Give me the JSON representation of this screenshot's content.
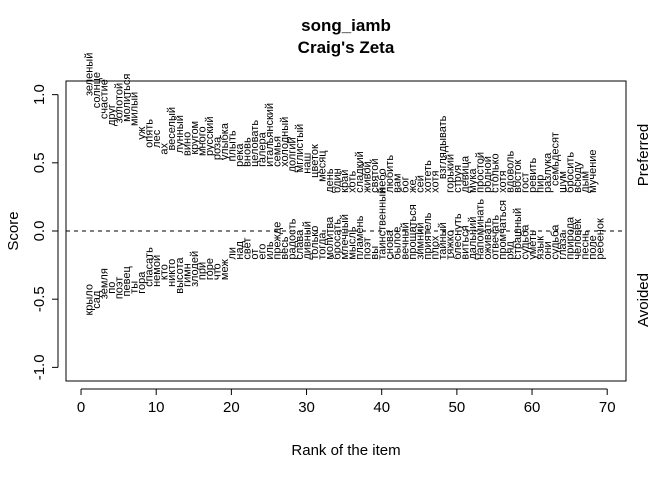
{
  "chart_data": {
    "type": "scatter",
    "title": "song_iamb",
    "subtitle": "Craig's Zeta",
    "xlabel": "Rank of the item",
    "ylabel": "Score",
    "xlim": [
      -2,
      72.5
    ],
    "ylim": [
      -1.1,
      1.1
    ],
    "x_ticks": [
      0,
      10,
      20,
      30,
      40,
      50,
      60,
      70
    ],
    "y_ticks": [
      -1.0,
      -0.5,
      0.0,
      0.5,
      1.0
    ],
    "x_tick_labels": [
      "0",
      "10",
      "20",
      "30",
      "40",
      "50",
      "60",
      "70"
    ],
    "y_tick_labels": [
      "-1.0",
      "-0.5",
      "0.0",
      "0.5",
      "1.0"
    ],
    "reference_line": 0,
    "right_labels": {
      "top": "Preferred",
      "bottom": "Avoided"
    },
    "series": [
      {
        "group": "Preferred",
        "points": [
          {
            "x": 1,
            "y": 0.99,
            "label": "зеленый"
          },
          {
            "x": 2,
            "y": 0.9,
            "label": "солнце"
          },
          {
            "x": 3,
            "y": 0.82,
            "label": "счастие"
          },
          {
            "x": 4,
            "y": 0.77,
            "label": "друг"
          },
          {
            "x": 5,
            "y": 0.79,
            "label": "золотой"
          },
          {
            "x": 6,
            "y": 0.8,
            "label": "молиться"
          },
          {
            "x": 7,
            "y": 0.77,
            "label": "милый"
          },
          {
            "x": 8,
            "y": 0.67,
            "label": "уж"
          },
          {
            "x": 9,
            "y": 0.61,
            "label": "опять"
          },
          {
            "x": 10,
            "y": 0.61,
            "label": "лес"
          },
          {
            "x": 11,
            "y": 0.56,
            "label": "ах"
          },
          {
            "x": 12,
            "y": 0.59,
            "label": "веселый"
          },
          {
            "x": 13,
            "y": 0.57,
            "label": "лунный"
          },
          {
            "x": 14,
            "y": 0.55,
            "label": "вино"
          },
          {
            "x": 15,
            "y": 0.56,
            "label": "кругом"
          },
          {
            "x": 16,
            "y": 0.55,
            "label": "много"
          },
          {
            "x": 17,
            "y": 0.55,
            "label": "русский"
          },
          {
            "x": 18,
            "y": 0.52,
            "label": "роза"
          },
          {
            "x": 19,
            "y": 0.52,
            "label": "улыбка"
          },
          {
            "x": 20,
            "y": 0.51,
            "label": "плыть"
          },
          {
            "x": 21,
            "y": 0.47,
            "label": "река"
          },
          {
            "x": 22,
            "y": 0.47,
            "label": "вновь"
          },
          {
            "x": 23,
            "y": 0.47,
            "label": "целовать"
          },
          {
            "x": 24,
            "y": 0.47,
            "label": "галера"
          },
          {
            "x": 25,
            "y": 0.47,
            "label": "итальянский"
          },
          {
            "x": 26,
            "y": 0.47,
            "label": "семья"
          },
          {
            "x": 27,
            "y": 0.47,
            "label": "холодный"
          },
          {
            "x": 28,
            "y": 0.43,
            "label": "долгий"
          },
          {
            "x": 29,
            "y": 0.43,
            "label": "мглистый"
          },
          {
            "x": 30,
            "y": 0.42,
            "label": "наш"
          },
          {
            "x": 31,
            "y": 0.39,
            "label": "цветок"
          },
          {
            "x": 32,
            "y": 0.36,
            "label": "месяц"
          },
          {
            "x": 33,
            "y": 0.28,
            "label": "день"
          },
          {
            "x": 34,
            "y": 0.28,
            "label": "один"
          },
          {
            "x": 35,
            "y": 0.28,
            "label": "край"
          },
          {
            "x": 36,
            "y": 0.28,
            "label": "хоть"
          },
          {
            "x": 37,
            "y": 0.28,
            "label": "сладкий"
          },
          {
            "x": 38,
            "y": 0.28,
            "label": "живой"
          },
          {
            "x": 39,
            "y": 0.28,
            "label": "святой"
          },
          {
            "x": 40,
            "y": 0.28,
            "label": "небо"
          },
          {
            "x": 41,
            "y": 0.28,
            "label": "любить"
          },
          {
            "x": 42,
            "y": 0.28,
            "label": "вам"
          },
          {
            "x": 43,
            "y": 0.28,
            "label": "бог"
          },
          {
            "x": 44,
            "y": 0.28,
            "label": "же"
          },
          {
            "x": 45,
            "y": 0.28,
            "label": "сей"
          },
          {
            "x": 46,
            "y": 0.28,
            "label": "хотеть"
          },
          {
            "x": 47,
            "y": 0.28,
            "label": "хотя"
          },
          {
            "x": 48,
            "y": 0.38,
            "label": "взглядывать"
          },
          {
            "x": 49,
            "y": 0.28,
            "label": "горький"
          },
          {
            "x": 50,
            "y": 0.28,
            "label": "струя"
          },
          {
            "x": 51,
            "y": 0.28,
            "label": "девица"
          },
          {
            "x": 52,
            "y": 0.28,
            "label": "мука"
          },
          {
            "x": 53,
            "y": 0.28,
            "label": "простой"
          },
          {
            "x": 54,
            "y": 0.28,
            "label": "родной"
          },
          {
            "x": 55,
            "y": 0.28,
            "label": "столько"
          },
          {
            "x": 56,
            "y": 0.28,
            "label": "хотя"
          },
          {
            "x": 57,
            "y": 0.28,
            "label": "вдоволь"
          },
          {
            "x": 58,
            "y": 0.28,
            "label": "восток"
          },
          {
            "x": 59,
            "y": 0.28,
            "label": "гост"
          },
          {
            "x": 60,
            "y": 0.28,
            "label": "ревить"
          },
          {
            "x": 61,
            "y": 0.28,
            "label": "пир"
          },
          {
            "x": 62,
            "y": 0.28,
            "label": "разлука"
          },
          {
            "x": 63,
            "y": 0.33,
            "label": "семьдесят"
          },
          {
            "x": 64,
            "y": 0.28,
            "label": "шум"
          },
          {
            "x": 65,
            "y": 0.28,
            "label": "бросить"
          },
          {
            "x": 66,
            "y": 0.28,
            "label": "всюду"
          },
          {
            "x": 67,
            "y": 0.28,
            "label": "дым"
          },
          {
            "x": 68,
            "y": 0.28,
            "label": "мучение"
          }
        ]
      },
      {
        "group": "Avoided",
        "points": [
          {
            "x": 1,
            "y": -0.62,
            "label": "крыло"
          },
          {
            "x": 2,
            "y": -0.57,
            "label": "сад"
          },
          {
            "x": 3,
            "y": -0.5,
            "label": "земля"
          },
          {
            "x": 4,
            "y": -0.46,
            "label": "по"
          },
          {
            "x": 5,
            "y": -0.5,
            "label": "поэт"
          },
          {
            "x": 6,
            "y": -0.48,
            "label": "певец"
          },
          {
            "x": 7,
            "y": -0.46,
            "label": "ты"
          },
          {
            "x": 8,
            "y": -0.46,
            "label": "гора"
          },
          {
            "x": 9,
            "y": -0.41,
            "label": "спасать"
          },
          {
            "x": 10,
            "y": -0.41,
            "label": "немой"
          },
          {
            "x": 11,
            "y": -0.36,
            "label": "кто"
          },
          {
            "x": 12,
            "y": -0.41,
            "label": "никто"
          },
          {
            "x": 13,
            "y": -0.46,
            "label": "высота"
          },
          {
            "x": 14,
            "y": -0.41,
            "label": "гимн"
          },
          {
            "x": 15,
            "y": -0.41,
            "label": "злодей"
          },
          {
            "x": 16,
            "y": -0.36,
            "label": "при"
          },
          {
            "x": 17,
            "y": -0.36,
            "label": "горе"
          },
          {
            "x": 18,
            "y": -0.36,
            "label": "что"
          },
          {
            "x": 19,
            "y": -0.36,
            "label": "меж"
          },
          {
            "x": 20,
            "y": -0.21,
            "label": "ли"
          },
          {
            "x": 21,
            "y": -0.21,
            "label": "над"
          },
          {
            "x": 22,
            "y": -0.21,
            "label": "свет"
          },
          {
            "x": 23,
            "y": -0.21,
            "label": "от"
          },
          {
            "x": 24,
            "y": -0.21,
            "label": "его"
          },
          {
            "x": 25,
            "y": -0.21,
            "label": "иль"
          },
          {
            "x": 26,
            "y": -0.21,
            "label": "прежде"
          },
          {
            "x": 27,
            "y": -0.21,
            "label": "весь"
          },
          {
            "x": 28,
            "y": -0.21,
            "label": "радость"
          },
          {
            "x": 29,
            "y": -0.21,
            "label": "слава"
          },
          {
            "x": 30,
            "y": -0.21,
            "label": "дивный"
          },
          {
            "x": 31,
            "y": -0.21,
            "label": "только"
          },
          {
            "x": 32,
            "y": -0.21,
            "label": "тогда"
          },
          {
            "x": 33,
            "y": -0.21,
            "label": "молитва"
          },
          {
            "x": 34,
            "y": -0.21,
            "label": "бросать"
          },
          {
            "x": 35,
            "y": -0.21,
            "label": "млечный"
          },
          {
            "x": 36,
            "y": -0.21,
            "label": "мысль"
          },
          {
            "x": 37,
            "y": -0.21,
            "label": "пламень"
          },
          {
            "x": 38,
            "y": -0.21,
            "label": "поэт"
          },
          {
            "x": 39,
            "y": -0.21,
            "label": "вы"
          },
          {
            "x": 40,
            "y": -0.21,
            "label": "таинственный"
          },
          {
            "x": 41,
            "y": -0.21,
            "label": "снова"
          },
          {
            "x": 42,
            "y": -0.21,
            "label": "былое"
          },
          {
            "x": 43,
            "y": -0.21,
            "label": "вечный"
          },
          {
            "x": 44,
            "y": -0.21,
            "label": "прощаться"
          },
          {
            "x": 45,
            "y": -0.21,
            "label": "зимний"
          },
          {
            "x": 46,
            "y": -0.21,
            "label": "приятель"
          },
          {
            "x": 47,
            "y": -0.21,
            "label": "плох"
          },
          {
            "x": 48,
            "y": -0.21,
            "label": "тайный"
          },
          {
            "x": 49,
            "y": -0.21,
            "label": "тяжко"
          },
          {
            "x": 50,
            "y": -0.21,
            "label": "блеснуть"
          },
          {
            "x": 51,
            "y": -0.21,
            "label": "виться"
          },
          {
            "x": 52,
            "y": -0.21,
            "label": "дальний"
          },
          {
            "x": 53,
            "y": -0.21,
            "label": "напоминать"
          },
          {
            "x": 54,
            "y": -0.21,
            "label": "оживать"
          },
          {
            "x": 55,
            "y": -0.21,
            "label": "отвечать"
          },
          {
            "x": 56,
            "y": -0.21,
            "label": "промчаться"
          },
          {
            "x": 57,
            "y": -0.21,
            "label": "ряд"
          },
          {
            "x": 58,
            "y": -0.21,
            "label": "страшный"
          },
          {
            "x": 59,
            "y": -0.21,
            "label": "судьба"
          },
          {
            "x": 60,
            "y": -0.21,
            "label": "уметь"
          },
          {
            "x": 61,
            "y": -0.21,
            "label": "язык"
          },
          {
            "x": 62,
            "y": -0.21,
            "label": "они"
          },
          {
            "x": 63,
            "y": -0.21,
            "label": "судьба"
          },
          {
            "x": 64,
            "y": -0.21,
            "label": "глаза"
          },
          {
            "x": 65,
            "y": -0.21,
            "label": "природа"
          },
          {
            "x": 66,
            "y": -0.21,
            "label": "человек"
          },
          {
            "x": 67,
            "y": -0.21,
            "label": "песнь"
          },
          {
            "x": 68,
            "y": -0.21,
            "label": "поле"
          },
          {
            "x": 69,
            "y": -0.21,
            "label": "ребенок"
          }
        ]
      }
    ]
  }
}
